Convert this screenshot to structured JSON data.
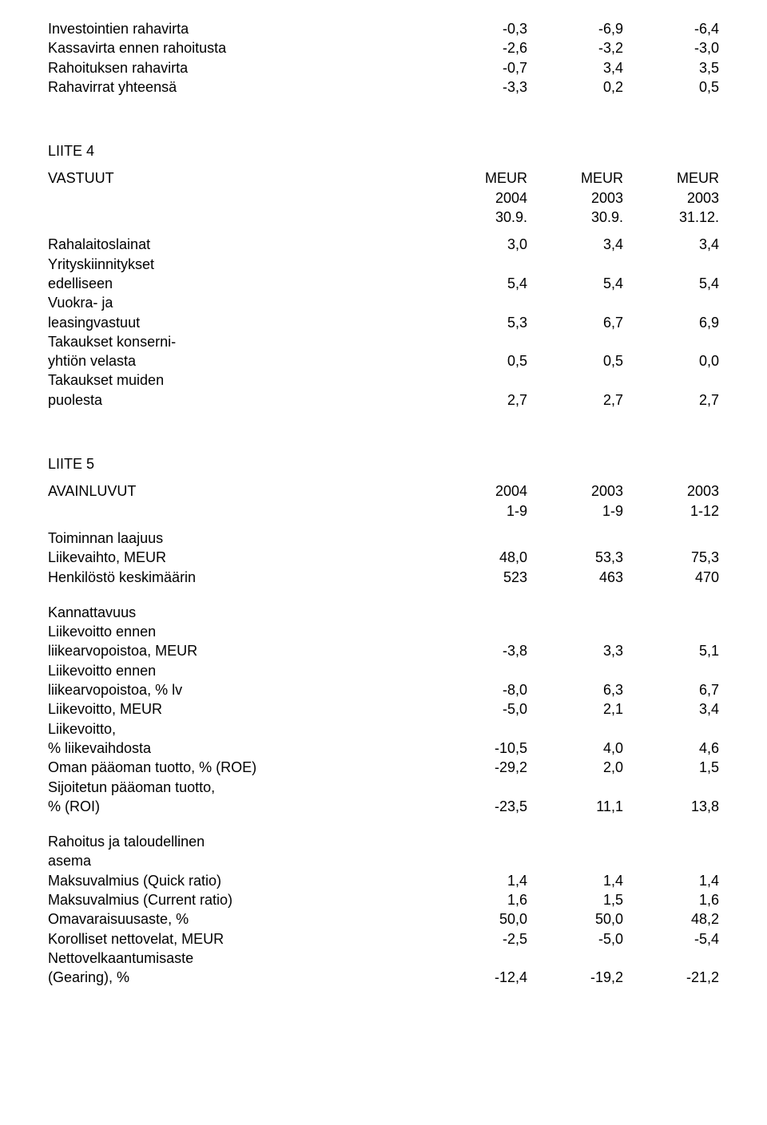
{
  "top": {
    "rows": [
      {
        "label": "Investointien rahavirta",
        "c1": "-0,3",
        "c2": "-6,9",
        "c3": "-6,4"
      },
      {
        "label": "Kassavirta ennen rahoitusta",
        "c1": "-2,6",
        "c2": "-3,2",
        "c3": "-3,0"
      },
      {
        "label": "Rahoituksen rahavirta",
        "c1": "-0,7",
        "c2": "3,4",
        "c3": "3,5"
      },
      {
        "label": "Rahavirrat yhteensä",
        "c1": "-3,3",
        "c2": "0,2",
        "c3": "0,5"
      }
    ]
  },
  "liite4": {
    "title": "LIITE 4",
    "header": {
      "label": "VASTUUT",
      "r1": {
        "c1": "MEUR",
        "c2": "MEUR",
        "c3": "MEUR"
      },
      "r2": {
        "c1": "2004",
        "c2": "2003",
        "c3": "2003"
      },
      "r3": {
        "c1": "30.9.",
        "c2": "30.9.",
        "c3": "31.12."
      }
    },
    "rows": [
      {
        "label": "Rahalaitoslainat",
        "c1": "3,0",
        "c2": "3,4",
        "c3": "3,4"
      },
      {
        "label": "Yrityskiinnitykset",
        "sub": true
      },
      {
        "label": "edelliseen",
        "c1": "5,4",
        "c2": "5,4",
        "c3": "5,4"
      },
      {
        "label": "Vuokra- ja",
        "sub": true
      },
      {
        "label": "leasingvastuut",
        "c1": "5,3",
        "c2": "6,7",
        "c3": "6,9"
      },
      {
        "label": "Takaukset konserni-",
        "sub": true
      },
      {
        "label": "yhtiön velasta",
        "c1": "0,5",
        "c2": "0,5",
        "c3": "0,0"
      },
      {
        "label": "Takaukset muiden",
        "sub": true
      },
      {
        "label": "puolesta",
        "c1": "2,7",
        "c2": "2,7",
        "c3": "2,7"
      }
    ]
  },
  "liite5": {
    "title": "LIITE 5",
    "header": {
      "label": "AVAINLUVUT",
      "r1": {
        "c1": "2004",
        "c2": "2003",
        "c3": "2003"
      },
      "r2": {
        "c1": "1-9",
        "c2": "1-9",
        "c3": "1-12"
      }
    },
    "groups": [
      {
        "heading": "Toiminnan laajuus",
        "rows": [
          {
            "label": "Liikevaihto, MEUR",
            "c1": "48,0",
            "c2": "53,3",
            "c3": "75,3"
          },
          {
            "label": "Henkilöstö keskimäärin",
            "c1": "523",
            "c2": "463",
            "c3": "470"
          }
        ]
      },
      {
        "heading": "Kannattavuus",
        "rows": [
          {
            "label": "Liikevoitto ennen",
            "sub": true
          },
          {
            "label": "liikearvopoistoa, MEUR",
            "c1": "-3,8",
            "c2": "3,3",
            "c3": "5,1"
          },
          {
            "label": "Liikevoitto ennen",
            "sub": true
          },
          {
            "label": "liikearvopoistoa, % lv",
            "c1": "-8,0",
            "c2": "6,3",
            "c3": "6,7"
          },
          {
            "label": "Liikevoitto, MEUR",
            "c1": "-5,0",
            "c2": "2,1",
            "c3": "3,4"
          },
          {
            "label": "Liikevoitto,",
            "sub": true
          },
          {
            "label": "% liikevaihdosta",
            "c1": "-10,5",
            "c2": "4,0",
            "c3": "4,6"
          },
          {
            "label": "Oman pääoman tuotto, % (ROE)",
            "c1": "-29,2",
            "c2": "2,0",
            "c3": "1,5"
          },
          {
            "label": "Sijoitetun pääoman tuotto,",
            "sub": true
          },
          {
            "label": "% (ROI)",
            "c1": "-23,5",
            "c2": "11,1",
            "c3": "13,8"
          }
        ]
      },
      {
        "heading": "Rahoitus ja taloudellinen",
        "heading2": "asema",
        "rows": [
          {
            "label": "Maksuvalmius (Quick ratio)",
            "c1": "1,4",
            "c2": "1,4",
            "c3": "1,4"
          },
          {
            "label": "Maksuvalmius (Current ratio)",
            "c1": "1,6",
            "c2": "1,5",
            "c3": "1,6"
          },
          {
            "label": "Omavaraisuusaste, %",
            "c1": "50,0",
            "c2": "50,0",
            "c3": "48,2"
          },
          {
            "label": "Korolliset nettovelat, MEUR",
            "c1": "-2,5",
            "c2": "-5,0",
            "c3": "-5,4"
          },
          {
            "label": "Nettovelkaantumisaste",
            "sub": true
          },
          {
            "label": "(Gearing), %",
            "c1": "-12,4",
            "c2": "-19,2",
            "c3": "-21,2"
          }
        ]
      }
    ]
  }
}
